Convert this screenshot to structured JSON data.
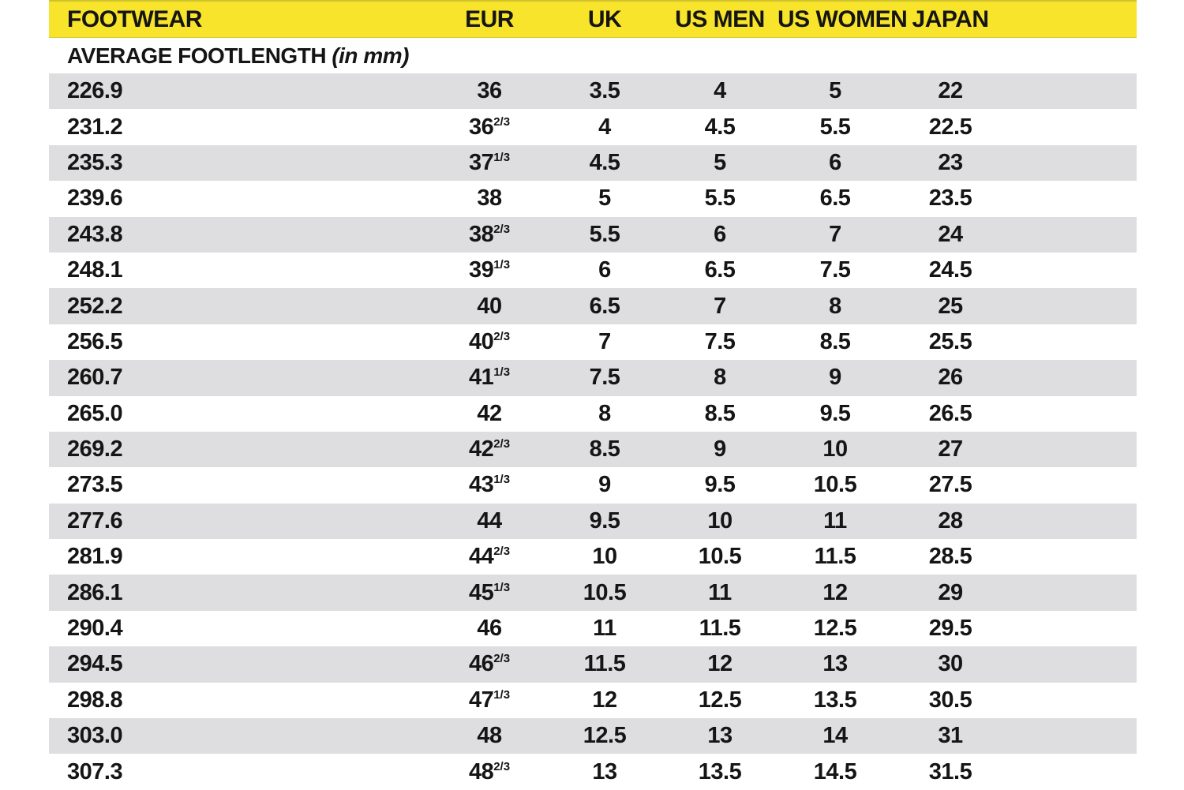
{
  "colors": {
    "header_bg": "#F8E42A",
    "stripe_bg": "#DEDEE0",
    "row_bg": "#FFFFFF",
    "text": "#151515"
  },
  "table": {
    "columns": [
      {
        "key": "footwear",
        "label": "FOOTWEAR"
      },
      {
        "key": "eur",
        "label": "EUR"
      },
      {
        "key": "uk",
        "label": "UK"
      },
      {
        "key": "us_men",
        "label": "US MEN"
      },
      {
        "key": "us_women",
        "label": "US WOMEN"
      },
      {
        "key": "japan",
        "label": "JAPAN"
      }
    ],
    "subheader": {
      "text": "AVERAGE FOOTLENGTH",
      "note": "(in mm)"
    },
    "rows": [
      {
        "footlength": "226.9",
        "eur": "36",
        "eur_frac": "",
        "uk": "3.5",
        "us_men": "4",
        "us_women": "5",
        "japan": "22"
      },
      {
        "footlength": "231.2",
        "eur": "36",
        "eur_frac": "2/3",
        "uk": "4",
        "us_men": "4.5",
        "us_women": "5.5",
        "japan": "22.5"
      },
      {
        "footlength": "235.3",
        "eur": "37",
        "eur_frac": "1/3",
        "uk": "4.5",
        "us_men": "5",
        "us_women": "6",
        "japan": "23"
      },
      {
        "footlength": "239.6",
        "eur": "38",
        "eur_frac": "",
        "uk": "5",
        "us_men": "5.5",
        "us_women": "6.5",
        "japan": "23.5"
      },
      {
        "footlength": "243.8",
        "eur": "38",
        "eur_frac": "2/3",
        "uk": "5.5",
        "us_men": "6",
        "us_women": "7",
        "japan": "24"
      },
      {
        "footlength": "248.1",
        "eur": "39",
        "eur_frac": "1/3",
        "uk": "6",
        "us_men": "6.5",
        "us_women": "7.5",
        "japan": "24.5"
      },
      {
        "footlength": "252.2",
        "eur": "40",
        "eur_frac": "",
        "uk": "6.5",
        "us_men": "7",
        "us_women": "8",
        "japan": "25"
      },
      {
        "footlength": "256.5",
        "eur": "40",
        "eur_frac": "2/3",
        "uk": "7",
        "us_men": "7.5",
        "us_women": "8.5",
        "japan": "25.5"
      },
      {
        "footlength": "260.7",
        "eur": "41",
        "eur_frac": "1/3",
        "uk": "7.5",
        "us_men": "8",
        "us_women": "9",
        "japan": "26"
      },
      {
        "footlength": "265.0",
        "eur": "42",
        "eur_frac": "",
        "uk": "8",
        "us_men": "8.5",
        "us_women": "9.5",
        "japan": "26.5"
      },
      {
        "footlength": "269.2",
        "eur": "42",
        "eur_frac": "2/3",
        "uk": "8.5",
        "us_men": "9",
        "us_women": "10",
        "japan": "27"
      },
      {
        "footlength": "273.5",
        "eur": "43",
        "eur_frac": "1/3",
        "uk": "9",
        "us_men": "9.5",
        "us_women": "10.5",
        "japan": "27.5"
      },
      {
        "footlength": "277.6",
        "eur": "44",
        "eur_frac": "",
        "uk": "9.5",
        "us_men": "10",
        "us_women": "11",
        "japan": "28"
      },
      {
        "footlength": "281.9",
        "eur": "44",
        "eur_frac": "2/3",
        "uk": "10",
        "us_men": "10.5",
        "us_women": "11.5",
        "japan": "28.5"
      },
      {
        "footlength": "286.1",
        "eur": "45",
        "eur_frac": "1/3",
        "uk": "10.5",
        "us_men": "11",
        "us_women": "12",
        "japan": "29"
      },
      {
        "footlength": "290.4",
        "eur": "46",
        "eur_frac": "",
        "uk": "11",
        "us_men": "11.5",
        "us_women": "12.5",
        "japan": "29.5"
      },
      {
        "footlength": "294.5",
        "eur": "46",
        "eur_frac": "2/3",
        "uk": "11.5",
        "us_men": "12",
        "us_women": "13",
        "japan": "30"
      },
      {
        "footlength": "298.8",
        "eur": "47",
        "eur_frac": "1/3",
        "uk": "12",
        "us_men": "12.5",
        "us_women": "13.5",
        "japan": "30.5"
      },
      {
        "footlength": "303.0",
        "eur": "48",
        "eur_frac": "",
        "uk": "12.5",
        "us_men": "13",
        "us_women": "14",
        "japan": "31"
      },
      {
        "footlength": "307.3",
        "eur": "48",
        "eur_frac": "2/3",
        "uk": "13",
        "us_men": "13.5",
        "us_women": "14.5",
        "japan": "31.5"
      }
    ]
  }
}
